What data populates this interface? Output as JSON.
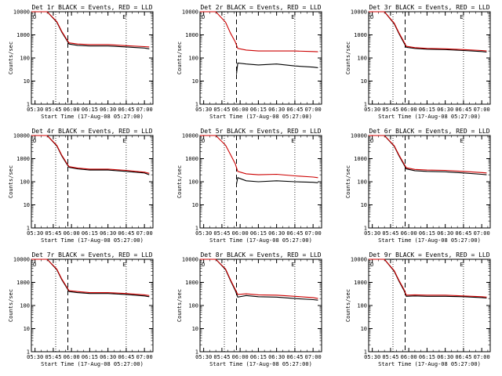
{
  "chart_data": [
    {
      "type": "line",
      "title": "Det 1r BLACK = Events, RED = LLD",
      "xlabel": "Start Time (17-Aug-08 05:27:00)",
      "ylabel": "Counts/sec",
      "x_ticks": [
        "05:30",
        "05:45",
        "06:00",
        "06:15",
        "06:30",
        "06:45",
        "07:00"
      ],
      "y_ticks": [
        "1",
        "10",
        "100",
        "1000",
        "10000"
      ],
      "ylim": [
        1,
        10000
      ],
      "yscale": "log",
      "dotted_lines": [
        "05:47",
        "06:45"
      ],
      "dashed_lines": [
        "05:57"
      ],
      "corner_labels": [
        "O",
        "E"
      ],
      "series": [
        {
          "name": "Events",
          "color": "#000000",
          "x": [
            "05:27",
            "05:32",
            "05:40",
            "05:48",
            "05:52",
            "05:56",
            "05:58",
            "06:05",
            "06:15",
            "06:30",
            "06:45",
            "07:00",
            "07:04"
          ],
          "y": [
            10000,
            10000,
            10000,
            3500,
            1300,
            600,
            400,
            350,
            330,
            330,
            300,
            270,
            250
          ]
        },
        {
          "name": "LLD",
          "color": "#cc0000",
          "x": [
            "05:27",
            "05:32",
            "05:40",
            "05:48",
            "05:52",
            "05:56",
            "05:58",
            "06:05",
            "06:15",
            "06:30",
            "06:45",
            "07:00",
            "07:04"
          ],
          "y": [
            10000,
            10000,
            10000,
            3700,
            1400,
            650,
            450,
            400,
            380,
            380,
            340,
            310,
            300
          ]
        }
      ]
    },
    {
      "type": "line",
      "title": "Det 2r BLACK = Events, RED = LLD",
      "xlabel": "Start Time (17-Aug-08 05:27:00)",
      "ylabel": "Counts/sec",
      "x_ticks": [
        "05:30",
        "05:45",
        "06:00",
        "06:15",
        "06:30",
        "06:45",
        "07:00"
      ],
      "y_ticks": [
        "1",
        "10",
        "100",
        "1000",
        "10000"
      ],
      "ylim": [
        1,
        10000
      ],
      "yscale": "log",
      "dotted_lines": [
        "05:47",
        "06:45"
      ],
      "dashed_lines": [
        "05:57"
      ],
      "corner_labels": [
        "O",
        "E"
      ],
      "series": [
        {
          "name": "Events",
          "color": "#000000",
          "x": [
            "05:57",
            "05:58",
            "06:05",
            "06:15",
            "06:30",
            "06:45",
            "07:00",
            "07:04"
          ],
          "y": [
            20,
            60,
            55,
            50,
            55,
            45,
            40,
            38
          ]
        },
        {
          "name": "LLD",
          "color": "#cc0000",
          "x": [
            "05:27",
            "05:32",
            "05:40",
            "05:48",
            "05:52",
            "05:56",
            "05:58",
            "06:05",
            "06:15",
            "06:30",
            "06:45",
            "07:00",
            "07:04"
          ],
          "y": [
            10000,
            10000,
            10000,
            3500,
            1200,
            500,
            260,
            220,
            200,
            200,
            200,
            190,
            185
          ]
        }
      ]
    },
    {
      "type": "line",
      "title": "Det 3r BLACK = Events, RED = LLD",
      "xlabel": "Start Time (17-Aug-08 05:27:00)",
      "ylabel": "Counts/sec",
      "x_ticks": [
        "05:30",
        "05:45",
        "06:00",
        "06:15",
        "06:30",
        "06:45",
        "07:00"
      ],
      "y_ticks": [
        "1",
        "10",
        "100",
        "1000",
        "10000"
      ],
      "ylim": [
        1,
        10000
      ],
      "yscale": "log",
      "dotted_lines": [
        "05:47",
        "06:45"
      ],
      "dashed_lines": [
        "05:57"
      ],
      "corner_labels": [
        "O",
        "E"
      ],
      "series": [
        {
          "name": "Events",
          "color": "#000000",
          "x": [
            "05:27",
            "05:32",
            "05:40",
            "05:48",
            "05:52",
            "05:56",
            "05:58",
            "06:05",
            "06:15",
            "06:30",
            "06:45",
            "07:00",
            "07:04"
          ],
          "y": [
            10000,
            10000,
            10000,
            3000,
            1100,
            450,
            290,
            260,
            240,
            230,
            210,
            190,
            180
          ]
        },
        {
          "name": "LLD",
          "color": "#cc0000",
          "x": [
            "05:27",
            "05:32",
            "05:40",
            "05:48",
            "05:52",
            "05:56",
            "05:58",
            "06:05",
            "06:15",
            "06:30",
            "06:45",
            "07:00",
            "07:04"
          ],
          "y": [
            10000,
            10000,
            10000,
            3200,
            1200,
            500,
            320,
            280,
            260,
            250,
            230,
            210,
            200
          ]
        }
      ]
    },
    {
      "type": "line",
      "title": "Det 4r BLACK = Events, RED = LLD",
      "xlabel": "Start Time (17-Aug-08 05:27:00)",
      "ylabel": "Counts/sec",
      "x_ticks": [
        "05:30",
        "05:45",
        "06:00",
        "06:15",
        "06:30",
        "06:45",
        "07:00"
      ],
      "y_ticks": [
        "1",
        "10",
        "100",
        "1000",
        "10000"
      ],
      "ylim": [
        1,
        10000
      ],
      "yscale": "log",
      "dotted_lines": [
        "05:47",
        "06:45"
      ],
      "dashed_lines": [
        "05:57"
      ],
      "corner_labels": [
        "O",
        "E"
      ],
      "series": [
        {
          "name": "Events",
          "color": "#000000",
          "x": [
            "05:27",
            "05:32",
            "05:40",
            "05:48",
            "05:52",
            "05:56",
            "05:58",
            "06:05",
            "06:15",
            "06:30",
            "06:45",
            "07:00",
            "07:04"
          ],
          "y": [
            10000,
            10000,
            10000,
            3500,
            1300,
            600,
            420,
            360,
            320,
            320,
            280,
            240,
            200
          ]
        },
        {
          "name": "LLD",
          "color": "#cc0000",
          "x": [
            "05:27",
            "05:32",
            "05:40",
            "05:48",
            "05:52",
            "05:56",
            "05:58",
            "06:05",
            "06:15",
            "06:30",
            "06:45",
            "07:00",
            "07:04"
          ],
          "y": [
            10000,
            10000,
            10000,
            3700,
            1400,
            650,
            450,
            390,
            350,
            350,
            310,
            260,
            230
          ]
        }
      ]
    },
    {
      "type": "line",
      "title": "Det 5r BLACK = Events, RED = LLD",
      "xlabel": "Start Time (17-Aug-08 05:27:00)",
      "ylabel": "Counts/sec",
      "x_ticks": [
        "05:30",
        "05:45",
        "06:00",
        "06:15",
        "06:30",
        "06:45",
        "07:00"
      ],
      "y_ticks": [
        "1",
        "10",
        "100",
        "1000",
        "10000"
      ],
      "ylim": [
        1,
        10000
      ],
      "yscale": "log",
      "dotted_lines": [
        "05:47",
        "06:45"
      ],
      "dashed_lines": [
        "05:57"
      ],
      "corner_labels": [
        "O",
        "E"
      ],
      "series": [
        {
          "name": "Events",
          "color": "#000000",
          "x": [
            "05:57",
            "05:58",
            "06:05",
            "06:15",
            "06:30",
            "06:45",
            "07:00",
            "07:04"
          ],
          "y": [
            80,
            150,
            110,
            100,
            110,
            100,
            95,
            90
          ]
        },
        {
          "name": "LLD",
          "color": "#cc0000",
          "x": [
            "05:27",
            "05:32",
            "05:40",
            "05:48",
            "05:52",
            "05:56",
            "05:58",
            "06:05",
            "06:15",
            "06:30",
            "06:45",
            "07:00",
            "07:04"
          ],
          "y": [
            10000,
            10000,
            10000,
            3800,
            1500,
            600,
            280,
            220,
            200,
            210,
            180,
            160,
            150
          ]
        }
      ]
    },
    {
      "type": "line",
      "title": "Det 6r BLACK = Events, RED = LLD",
      "xlabel": "Start Time (17-Aug-08 05:27:00)",
      "ylabel": "Counts/sec",
      "x_ticks": [
        "05:30",
        "05:45",
        "06:00",
        "06:15",
        "06:30",
        "06:45",
        "07:00"
      ],
      "y_ticks": [
        "1",
        "10",
        "100",
        "1000",
        "10000"
      ],
      "ylim": [
        1,
        10000
      ],
      "yscale": "log",
      "dotted_lines": [
        "05:47",
        "06:45"
      ],
      "dashed_lines": [
        "05:57"
      ],
      "corner_labels": [
        "O",
        "E"
      ],
      "series": [
        {
          "name": "Events",
          "color": "#000000",
          "x": [
            "05:27",
            "05:32",
            "05:40",
            "05:48",
            "05:52",
            "05:56",
            "05:58",
            "06:05",
            "06:15",
            "06:30",
            "06:45",
            "07:00",
            "07:04"
          ],
          "y": [
            10000,
            10000,
            10000,
            3400,
            1300,
            550,
            360,
            300,
            280,
            270,
            240,
            210,
            200
          ]
        },
        {
          "name": "LLD",
          "color": "#cc0000",
          "x": [
            "05:27",
            "05:32",
            "05:40",
            "05:48",
            "05:52",
            "05:56",
            "05:58",
            "06:05",
            "06:15",
            "06:30",
            "06:45",
            "07:00",
            "07:04"
          ],
          "y": [
            10000,
            10000,
            10000,
            3600,
            1400,
            600,
            400,
            340,
            320,
            310,
            280,
            250,
            240
          ]
        }
      ]
    },
    {
      "type": "line",
      "title": "Det 7r BLACK = Events, RED = LLD",
      "xlabel": "Start Time (17-Aug-08 05:27:00)",
      "ylabel": "Counts/sec",
      "x_ticks": [
        "05:30",
        "05:45",
        "06:00",
        "06:15",
        "06:30",
        "06:45",
        "07:00"
      ],
      "y_ticks": [
        "1",
        "10",
        "100",
        "1000",
        "10000"
      ],
      "ylim": [
        1,
        10000
      ],
      "yscale": "log",
      "dotted_lines": [
        "05:47",
        "06:45"
      ],
      "dashed_lines": [
        "05:57"
      ],
      "corner_labels": [
        "O",
        "E"
      ],
      "series": [
        {
          "name": "Events",
          "color": "#000000",
          "x": [
            "05:27",
            "05:32",
            "05:40",
            "05:48",
            "05:52",
            "05:56",
            "05:58",
            "06:05",
            "06:15",
            "06:30",
            "06:45",
            "07:00",
            "07:04"
          ],
          "y": [
            10000,
            10000,
            10000,
            3500,
            1300,
            600,
            400,
            360,
            330,
            330,
            300,
            260,
            240
          ]
        },
        {
          "name": "LLD",
          "color": "#cc0000",
          "x": [
            "05:27",
            "05:32",
            "05:40",
            "05:48",
            "05:52",
            "05:56",
            "05:58",
            "06:05",
            "06:15",
            "06:30",
            "06:45",
            "07:00",
            "07:04"
          ],
          "y": [
            10000,
            10000,
            10000,
            3700,
            1400,
            650,
            440,
            400,
            360,
            360,
            330,
            290,
            270
          ]
        }
      ]
    },
    {
      "type": "line",
      "title": "Det 8r BLACK = Events, RED = LLD",
      "xlabel": "Start Time (17-Aug-08 05:27:00)",
      "ylabel": "Counts/sec",
      "x_ticks": [
        "05:30",
        "05:45",
        "06:00",
        "06:15",
        "06:30",
        "06:45",
        "07:00"
      ],
      "y_ticks": [
        "1",
        "10",
        "100",
        "1000",
        "10000"
      ],
      "ylim": [
        1,
        10000
      ],
      "yscale": "log",
      "dotted_lines": [
        "05:47",
        "06:45"
      ],
      "dashed_lines": [
        "05:57"
      ],
      "corner_labels": [
        "O",
        "E"
      ],
      "series": [
        {
          "name": "Events",
          "color": "#000000",
          "x": [
            "05:27",
            "05:32",
            "05:40",
            "05:48",
            "05:52",
            "05:56",
            "05:58",
            "06:05",
            "06:15",
            "06:30",
            "06:45",
            "07:00",
            "07:04"
          ],
          "y": [
            10000,
            10000,
            10000,
            3600,
            1200,
            450,
            230,
            270,
            240,
            230,
            200,
            180,
            170
          ]
        },
        {
          "name": "LLD",
          "color": "#cc0000",
          "x": [
            "05:27",
            "05:32",
            "05:40",
            "05:48",
            "05:52",
            "05:56",
            "05:58",
            "06:05",
            "06:15",
            "06:30",
            "06:45",
            "07:00",
            "07:04"
          ],
          "y": [
            10000,
            10000,
            10000,
            3800,
            1300,
            500,
            300,
            320,
            290,
            280,
            250,
            220,
            200
          ]
        }
      ]
    },
    {
      "type": "line",
      "title": "Det 9r BLACK = Events, RED = LLD",
      "xlabel": "Start Time (17-Aug-08 05:27:00)",
      "ylabel": "Counts/sec",
      "x_ticks": [
        "05:30",
        "05:45",
        "06:00",
        "06:15",
        "06:30",
        "06:45",
        "07:00"
      ],
      "y_ticks": [
        "1",
        "10",
        "100",
        "1000",
        "10000"
      ],
      "ylim": [
        1,
        10000
      ],
      "yscale": "log",
      "dotted_lines": [
        "05:47",
        "06:45"
      ],
      "dashed_lines": [
        "05:57"
      ],
      "corner_labels": [
        "O",
        "E"
      ],
      "series": [
        {
          "name": "Events",
          "color": "#000000",
          "x": [
            "05:27",
            "05:32",
            "05:40",
            "05:48",
            "05:52",
            "05:56",
            "05:58",
            "06:05",
            "06:15",
            "06:30",
            "06:45",
            "07:00",
            "07:04"
          ],
          "y": [
            10000,
            10000,
            10000,
            3000,
            1100,
            450,
            250,
            260,
            250,
            250,
            240,
            220,
            210
          ]
        },
        {
          "name": "LLD",
          "color": "#cc0000",
          "x": [
            "05:27",
            "05:32",
            "05:40",
            "05:48",
            "05:52",
            "05:56",
            "05:58",
            "06:05",
            "06:15",
            "06:30",
            "06:45",
            "07:00",
            "07:04"
          ],
          "y": [
            10000,
            10000,
            10000,
            3200,
            1200,
            500,
            280,
            290,
            280,
            280,
            260,
            240,
            230
          ]
        }
      ]
    }
  ]
}
